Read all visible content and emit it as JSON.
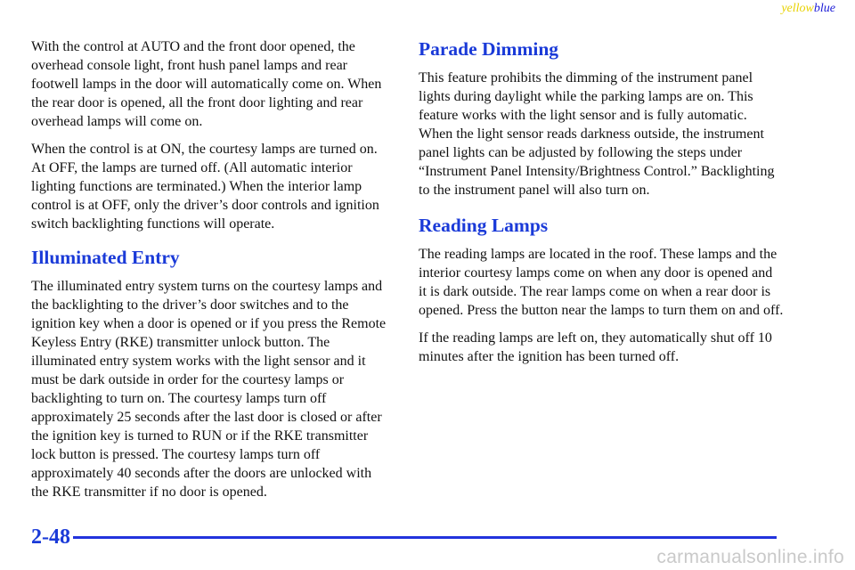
{
  "header": {
    "tag_yellow": "yellow",
    "tag_blue": "blue"
  },
  "left": {
    "para1": "With the control at AUTO and the front door opened, the overhead console light, front hush panel lamps and rear footwell lamps in the door will automatically come on. When the rear door is opened, all the front door lighting and rear overhead lamps will come on.",
    "para2": "When the control is at ON, the courtesy lamps are turned on. At OFF, the lamps are turned off. (All automatic interior lighting functions are terminated.) When the interior lamp control is at OFF, only the driver’s door controls and ignition switch backlighting functions will operate.",
    "heading_illuminated": "Illuminated Entry",
    "para3": "The illuminated entry system turns on the courtesy lamps and the backlighting to the driver’s door switches and to the ignition key when a door is opened or if you press the Remote Keyless Entry (RKE) transmitter unlock button. The illuminated entry system works with the light sensor and it must be dark outside in order for the courtesy lamps or backlighting to turn on. The courtesy lamps turn off approximately 25 seconds after the last door is closed or after the ignition key is turned to RUN or if the RKE transmitter lock button is pressed. The courtesy lamps turn off approximately 40 seconds after the doors are unlocked with the RKE transmitter if no door is opened."
  },
  "right": {
    "heading_parade": "Parade Dimming",
    "para4": "This feature prohibits the dimming of the instrument panel lights during daylight while the parking lamps are on. This feature works with the light sensor and is fully automatic. When the light sensor reads darkness outside, the instrument panel lights can be adjusted by following the steps under “Instrument Panel Intensity/Brightness Control.” Backlighting to the instrument panel will also turn on.",
    "heading_reading": "Reading Lamps",
    "para5": "The reading lamps are located in the roof. These lamps and the interior courtesy lamps come on when any door is opened and it is dark outside. The rear lamps come on when a rear door is opened. Press the button near the lamps to turn them on and off.",
    "para6": "If the reading lamps are left on, they automatically shut off 10 minutes after the ignition has been turned off."
  },
  "footer": {
    "page_number": "2-48",
    "watermark": "carmanualsonline.info"
  },
  "colors": {
    "heading": "#1a3ad8",
    "rule": "#2233dd",
    "yellow_tag": "#e8d200",
    "blue_tag": "#1a1ad6"
  }
}
